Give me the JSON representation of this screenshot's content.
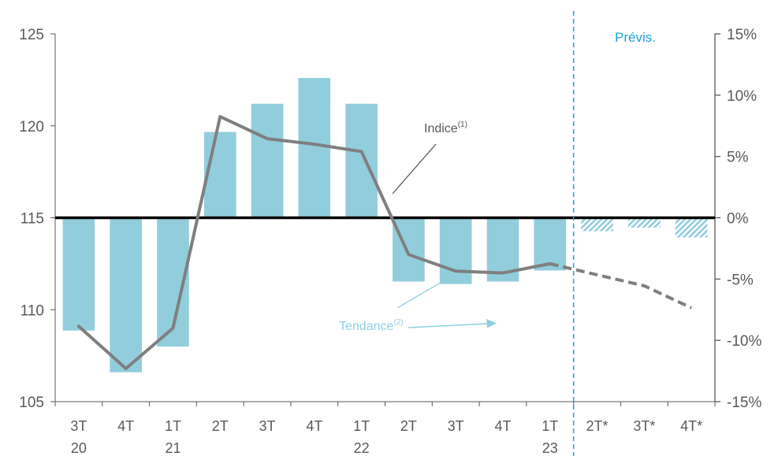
{
  "chart_data": {
    "type": "bar+line",
    "title": "",
    "categories": [
      [
        "3T",
        "20"
      ],
      [
        "4T",
        ""
      ],
      [
        "1T",
        "21"
      ],
      [
        "2T",
        ""
      ],
      [
        "3T",
        ""
      ],
      [
        "4T",
        ""
      ],
      [
        "1T",
        "22"
      ],
      [
        "2T",
        ""
      ],
      [
        "3T",
        ""
      ],
      [
        "4T",
        ""
      ],
      [
        "1T",
        "23"
      ],
      [
        "2T*",
        ""
      ],
      [
        "3T*",
        ""
      ],
      [
        "4T*",
        ""
      ]
    ],
    "left_axis": {
      "min": 105,
      "max": 125,
      "ticks": [
        "105",
        "110",
        "115",
        "120",
        "125"
      ]
    },
    "right_axis": {
      "min": -15,
      "max": 15,
      "ticks": [
        "-15%",
        "-10%",
        "-5%",
        "0%",
        "5%",
        "10%",
        "15%"
      ]
    },
    "series": [
      {
        "kind": "bar",
        "axis": "right",
        "unit": "%",
        "color": "#92cddc",
        "values": [
          -9.2,
          -12.6,
          -10.5,
          7.0,
          9.3,
          11.4,
          9.3,
          -5.2,
          -5.4,
          -5.2,
          -4.3,
          -1.1,
          -0.8,
          -1.6
        ],
        "forecast_from_index": 11,
        "forecast_fill": "hatched"
      },
      {
        "kind": "line",
        "axis": "left",
        "color": "#7f7f7f",
        "values": [
          109.1,
          106.8,
          109.0,
          120.5,
          119.3,
          119.0,
          118.6,
          113.0,
          112.1,
          112.0,
          112.5,
          111.9,
          111.3,
          110.1
        ],
        "forecast_from_index": 10,
        "forecast_style": "dashed"
      }
    ],
    "annotations": {
      "indice": {
        "text": "Indice",
        "sup": "(1)"
      },
      "tendance": {
        "text": "Tendance",
        "sup": "(2)"
      },
      "forecast_label": "Prévis."
    },
    "forecast_divider_after_index": 10,
    "colors": {
      "bar": "#92cddc",
      "line": "#7f7f7f",
      "zero_line": "#000000",
      "divider": "#1aa3d6",
      "axis": "#595959"
    },
    "grid": false,
    "legend": "none"
  }
}
